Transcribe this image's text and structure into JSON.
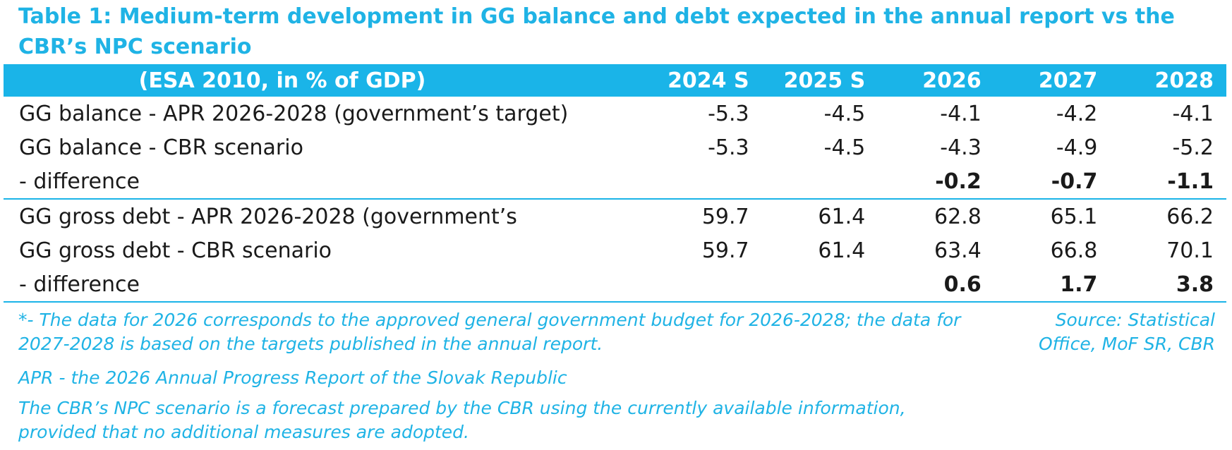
{
  "title": "Table 1: Medium-term development in GG balance and debt expected in the annual report vs the CBR’s NPC scenario",
  "table": {
    "header": [
      "(ESA 2010, in % of GDP)",
      "2024 S",
      "2025 S",
      "2026",
      "2027",
      "2028"
    ],
    "rows": [
      {
        "label": "GG balance - APR 2026-2028 (government’s target)",
        "values": [
          "-5.3",
          "-4.5",
          "-4.1",
          "-4.2",
          "-4.1"
        ]
      },
      {
        "label": "GG balance - CBR scenario",
        "values": [
          "-5.3",
          "-4.5",
          "-4.3",
          "-4.9",
          "-5.2"
        ]
      },
      {
        "label": "- difference",
        "values": [
          "",
          "",
          "-0.2",
          "-0.7",
          "-1.1"
        ]
      },
      {
        "label": "GG gross debt - APR 2026-2028 (government’s",
        "values": [
          "59.7",
          "61.4",
          "62.8",
          "65.1",
          "66.2"
        ]
      },
      {
        "label": "GG gross debt - CBR scenario",
        "values": [
          "59.7",
          "61.4",
          "63.4",
          "66.8",
          "70.1"
        ]
      },
      {
        "label": "- difference",
        "values": [
          "",
          "",
          "0.6",
          "1.7",
          "3.8"
        ]
      }
    ]
  },
  "notes": {
    "footnote": "*- The data for 2026 corresponds to the approved general government budget for 2026-2028; the data for 2027-2028 is based on the targets published in the annual report.",
    "source": "Source: Statistical Office, MoF SR, CBR",
    "apr": "APR - the 2026 Annual Progress Report of the Slovak Republic",
    "npc": "The CBR’s NPC scenario is a forecast prepared by the CBR using the currently available information, provided that no additional measures are adopted."
  },
  "colors": {
    "accent": "#1ab4e8",
    "text": "#1a1a1a",
    "header_text": "#ffffff"
  }
}
